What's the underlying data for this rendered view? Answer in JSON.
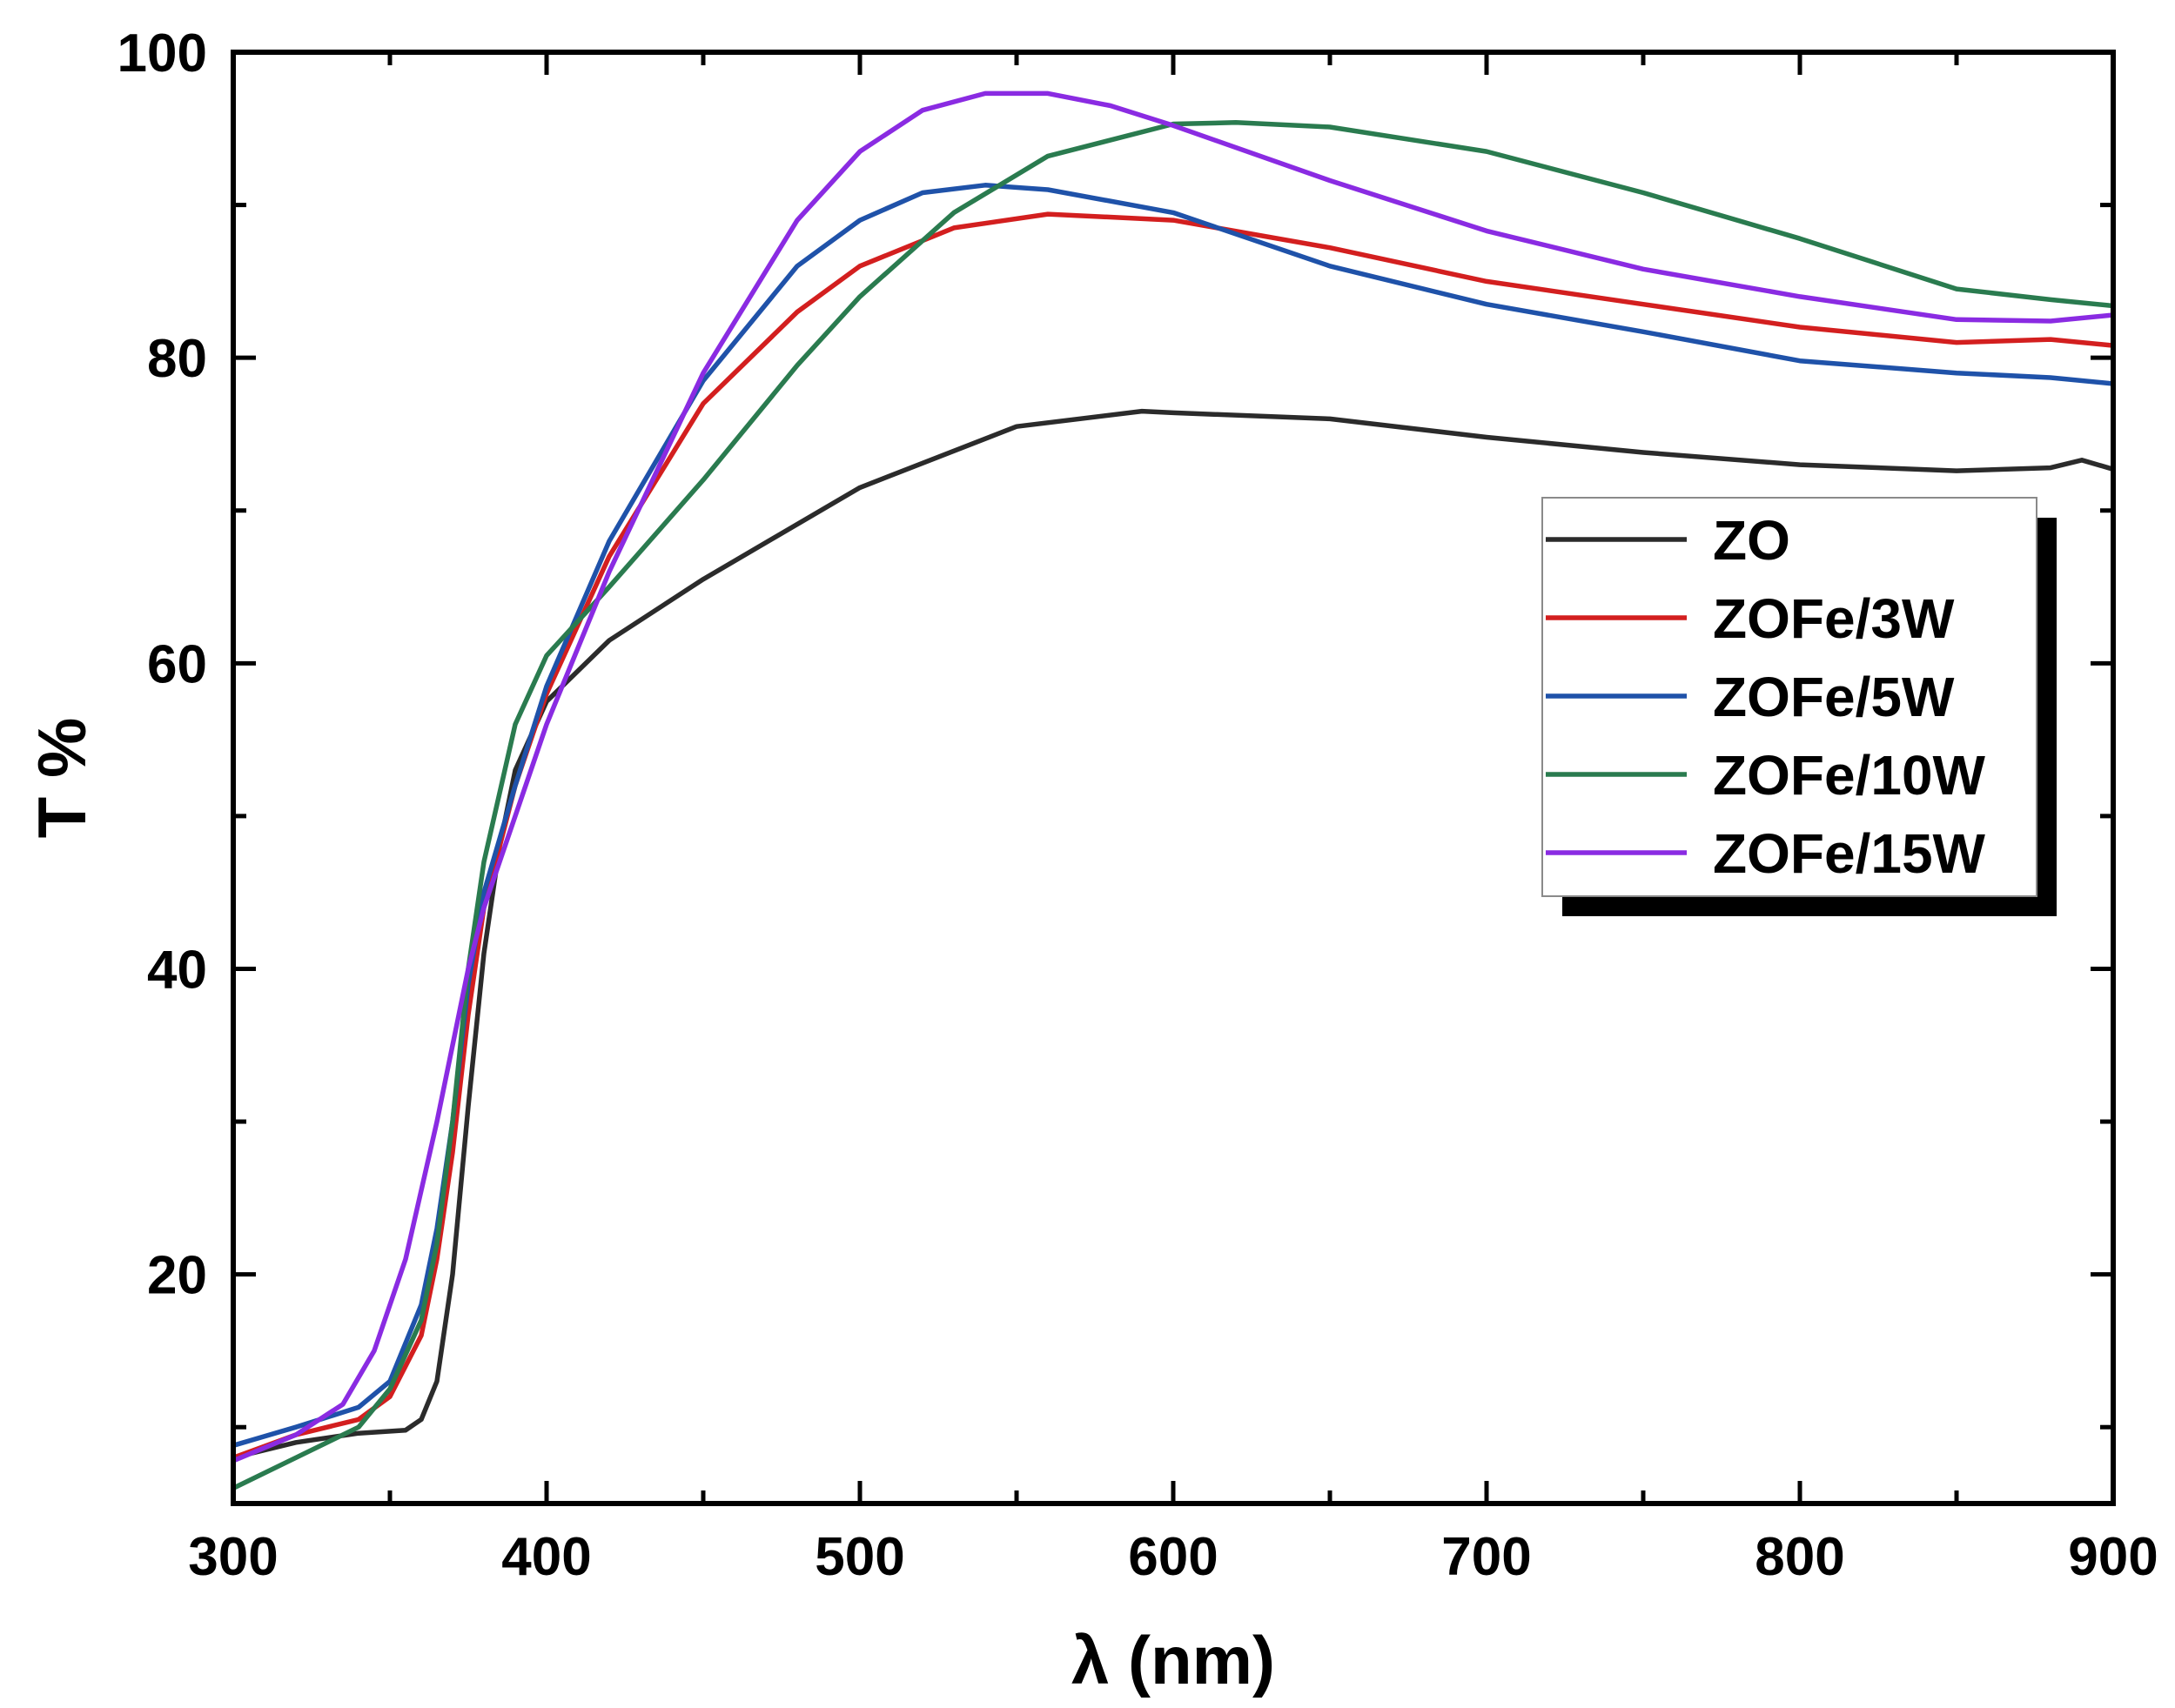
{
  "chart_data": {
    "type": "line",
    "title": "",
    "xlabel": "λ (nm)",
    "ylabel": "T %",
    "xlim": [
      300,
      900
    ],
    "ylim": [
      5,
      100
    ],
    "xticks": [
      300,
      400,
      500,
      600,
      700,
      800,
      900
    ],
    "yticks": [
      20,
      40,
      60,
      80,
      100
    ],
    "x_minor_step": 50,
    "y_minor_step": 10,
    "grid": false,
    "legend_position": "right",
    "series": [
      {
        "name": "ZO",
        "color": "#2b2b2b",
        "points": [
          [
            300,
            8.0
          ],
          [
            320,
            9.0
          ],
          [
            340,
            9.6
          ],
          [
            355,
            9.8
          ],
          [
            360,
            10.5
          ],
          [
            365,
            13.0
          ],
          [
            370,
            20.0
          ],
          [
            375,
            31.0
          ],
          [
            380,
            41.0
          ],
          [
            385,
            48.0
          ],
          [
            390,
            53.0
          ],
          [
            400,
            57.5
          ],
          [
            420,
            61.5
          ],
          [
            450,
            65.5
          ],
          [
            500,
            71.5
          ],
          [
            550,
            75.5
          ],
          [
            590,
            76.5
          ],
          [
            600,
            76.4
          ],
          [
            650,
            76.0
          ],
          [
            700,
            74.8
          ],
          [
            750,
            73.8
          ],
          [
            800,
            73.0
          ],
          [
            850,
            72.6
          ],
          [
            880,
            72.8
          ],
          [
            890,
            73.3
          ],
          [
            900,
            72.7
          ]
        ]
      },
      {
        "name": "ZOFe/3W",
        "color": "#d31f1f",
        "points": [
          [
            300,
            8.0
          ],
          [
            320,
            9.5
          ],
          [
            340,
            10.5
          ],
          [
            350,
            12.0
          ],
          [
            360,
            16.0
          ],
          [
            365,
            21.0
          ],
          [
            370,
            28.0
          ],
          [
            375,
            37.0
          ],
          [
            380,
            44.0
          ],
          [
            390,
            52.0
          ],
          [
            400,
            58.0
          ],
          [
            420,
            67.0
          ],
          [
            450,
            77.0
          ],
          [
            480,
            83.0
          ],
          [
            500,
            86.0
          ],
          [
            530,
            88.5
          ],
          [
            560,
            89.4
          ],
          [
            600,
            89.0
          ],
          [
            650,
            87.2
          ],
          [
            700,
            85.0
          ],
          [
            750,
            83.5
          ],
          [
            800,
            82.0
          ],
          [
            850,
            81.0
          ],
          [
            880,
            81.2
          ],
          [
            900,
            80.8
          ]
        ]
      },
      {
        "name": "ZOFe/5W",
        "color": "#1f52a9",
        "points": [
          [
            300,
            8.8
          ],
          [
            320,
            10.0
          ],
          [
            340,
            11.3
          ],
          [
            350,
            13.0
          ],
          [
            360,
            18.0
          ],
          [
            365,
            23.0
          ],
          [
            370,
            30.0
          ],
          [
            375,
            39.0
          ],
          [
            380,
            45.0
          ],
          [
            390,
            52.0
          ],
          [
            400,
            58.5
          ],
          [
            420,
            68.0
          ],
          [
            450,
            78.5
          ],
          [
            480,
            86.0
          ],
          [
            500,
            89.0
          ],
          [
            520,
            90.8
          ],
          [
            540,
            91.3
          ],
          [
            560,
            91.0
          ],
          [
            600,
            89.5
          ],
          [
            650,
            86.0
          ],
          [
            700,
            83.5
          ],
          [
            750,
            81.7
          ],
          [
            800,
            79.8
          ],
          [
            850,
            79.0
          ],
          [
            880,
            78.7
          ],
          [
            900,
            78.3
          ]
        ]
      },
      {
        "name": "ZOFe/10W",
        "color": "#2a7b4f",
        "points": [
          [
            300,
            6.0
          ],
          [
            320,
            8.0
          ],
          [
            340,
            10.0
          ],
          [
            350,
            12.5
          ],
          [
            360,
            17.0
          ],
          [
            365,
            22.0
          ],
          [
            370,
            30.0
          ],
          [
            375,
            40.0
          ],
          [
            380,
            47.0
          ],
          [
            390,
            56.0
          ],
          [
            400,
            60.5
          ],
          [
            420,
            65.0
          ],
          [
            450,
            72.0
          ],
          [
            480,
            79.5
          ],
          [
            500,
            84.0
          ],
          [
            530,
            89.5
          ],
          [
            560,
            93.2
          ],
          [
            600,
            95.3
          ],
          [
            620,
            95.4
          ],
          [
            650,
            95.1
          ],
          [
            700,
            93.5
          ],
          [
            750,
            90.8
          ],
          [
            800,
            87.8
          ],
          [
            850,
            84.5
          ],
          [
            880,
            83.8
          ],
          [
            900,
            83.4
          ]
        ]
      },
      {
        "name": "ZOFe/15W",
        "color": "#8a2be2",
        "points": [
          [
            300,
            7.8
          ],
          [
            320,
            9.5
          ],
          [
            335,
            11.5
          ],
          [
            345,
            15.0
          ],
          [
            355,
            21.0
          ],
          [
            365,
            30.0
          ],
          [
            375,
            40.0
          ],
          [
            380,
            44.0
          ],
          [
            390,
            50.0
          ],
          [
            400,
            56.0
          ],
          [
            420,
            66.0
          ],
          [
            450,
            79.0
          ],
          [
            480,
            89.0
          ],
          [
            500,
            93.5
          ],
          [
            520,
            96.2
          ],
          [
            540,
            97.3
          ],
          [
            560,
            97.3
          ],
          [
            580,
            96.5
          ],
          [
            600,
            95.2
          ],
          [
            650,
            91.6
          ],
          [
            700,
            88.3
          ],
          [
            750,
            85.8
          ],
          [
            800,
            84.0
          ],
          [
            850,
            82.5
          ],
          [
            880,
            82.4
          ],
          [
            900,
            82.8
          ]
        ]
      }
    ]
  }
}
